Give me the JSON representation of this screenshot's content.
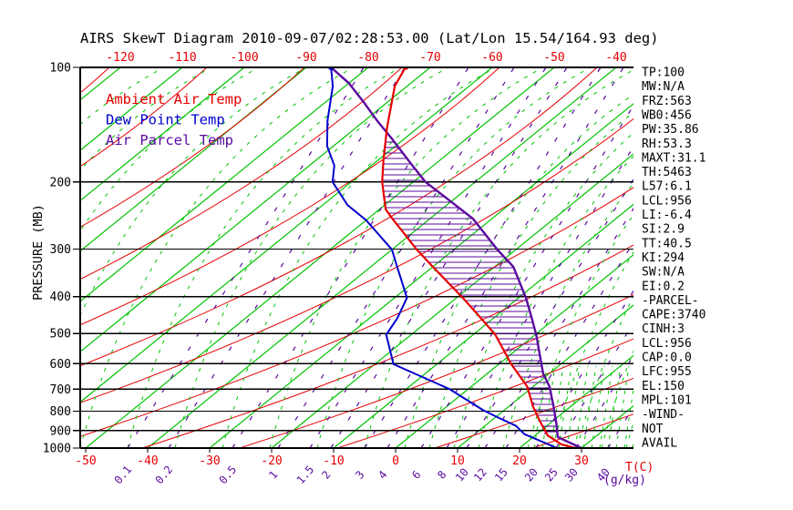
{
  "title": "AIRS SkewT Diagram 2010-09-07/02:28:53.00 (Lat/Lon 15.54/164.93 deg)",
  "legend": {
    "items": [
      {
        "label": "Ambient Air Temp",
        "color": "#e60000"
      },
      {
        "label": "Dew Point Temp",
        "color": "#0000cd"
      },
      {
        "label": "Air Parcel Temp",
        "color": "#5a0a9e"
      }
    ]
  },
  "axes": {
    "pressure_label": "PRESSURE (MB)",
    "pressure_ticks": [
      100,
      200,
      300,
      400,
      500,
      600,
      700,
      800,
      900,
      1000
    ],
    "top_temp_labels": [
      -120,
      -110,
      -100,
      -90,
      -80,
      -70,
      -60,
      -50,
      -40
    ],
    "bottom_temp_labels": [
      -50,
      -40,
      -30,
      -20,
      -10,
      0,
      10,
      20,
      30
    ],
    "temp_unit_label": "T(C)",
    "mixing_ratio_labels": [
      "0.1",
      "0.2",
      "0.5",
      "1",
      "1.5",
      "2",
      "3",
      "4",
      "6",
      "8",
      "10",
      "12",
      "15",
      "20",
      "25",
      "30",
      "40"
    ],
    "mixing_ratio_unit": "(g/kg)"
  },
  "readouts": {
    "lines": [
      "TP:100",
      "MW:N/A",
      "FRZ:563",
      "WB0:456",
      "PW:35.86",
      "RH:53.3",
      "MAXT:31.1",
      "TH:5463",
      "L57:6.1",
      "LCL:956",
      "LI:-6.4",
      "SI:2.9",
      "TT:40.5",
      "KI:294",
      "SW:N/A",
      "EI:0.2",
      "-PARCEL-",
      "CAPE:3740",
      "CINH:3",
      "LCL:956",
      "CAP:0.0",
      "LFC:955",
      "EL:150",
      "MPL:101",
      "-WIND-",
      "NOT",
      "AVAIL"
    ]
  },
  "chart_data": {
    "type": "line",
    "title": "AIRS SkewT Diagram 2010-09-07/02:28:53.00 (Lat/Lon 15.54/164.93 deg)",
    "x_axis": {
      "label": "T(C)",
      "top_tick_labels_c": [
        -120,
        -110,
        -100,
        -90,
        -80,
        -70,
        -60,
        -50,
        -40
      ],
      "bottom_tick_labels_c": [
        -50,
        -40,
        -30,
        -20,
        -10,
        0,
        10,
        20,
        30
      ],
      "skewed": true
    },
    "y_axis": {
      "label": "PRESSURE (MB)",
      "scale": "log",
      "range_mb": [
        100,
        1000
      ],
      "ticks_mb": [
        100,
        200,
        300,
        400,
        500,
        600,
        700,
        800,
        900,
        1000
      ]
    },
    "background": {
      "isotherms_c": {
        "start": -160,
        "end": 50,
        "step": 10,
        "style": "solid green"
      },
      "dry_adiabats": {
        "style": "solid red"
      },
      "moist_adiabats": {
        "style": "dashed green"
      },
      "mixing_ratio_lines_gkg": [
        "0.1",
        "0.2",
        "0.5",
        "1",
        "1.5",
        "2",
        "3",
        "4",
        "6",
        "8",
        "10",
        "12",
        "15",
        "20",
        "25",
        "30",
        "40"
      ]
    },
    "series": [
      {
        "name": "Ambient Air Temp",
        "color": "#e60000",
        "units": [
          "mb",
          "C"
        ],
        "points": [
          [
            100,
            -74
          ],
          [
            112,
            -72
          ],
          [
            144,
            -65
          ],
          [
            176,
            -59
          ],
          [
            200,
            -55
          ],
          [
            236,
            -49
          ],
          [
            250,
            -46
          ],
          [
            301,
            -36
          ],
          [
            334,
            -30
          ],
          [
            403,
            -19
          ],
          [
            456,
            -12
          ],
          [
            504,
            -6.4
          ],
          [
            602,
            2
          ],
          [
            689,
            9
          ],
          [
            779,
            14
          ],
          [
            851,
            18
          ],
          [
            926,
            22
          ],
          [
            978,
            26
          ],
          [
            1000,
            29
          ]
        ]
      },
      {
        "name": "Dew Point Temp",
        "color": "#0000cd",
        "units": [
          "mb",
          "C"
        ],
        "points": [
          [
            100,
            -86
          ],
          [
            112,
            -82
          ],
          [
            138,
            -76
          ],
          [
            161,
            -71
          ],
          [
            181,
            -66
          ],
          [
            200,
            -63
          ],
          [
            230,
            -56
          ],
          [
            252,
            -50
          ],
          [
            301,
            -40
          ],
          [
            332,
            -36
          ],
          [
            403,
            -28
          ],
          [
            456,
            -25.5
          ],
          [
            504,
            -24
          ],
          [
            602,
            -17
          ],
          [
            700,
            -3
          ],
          [
            794,
            6.5
          ],
          [
            827,
            10
          ],
          [
            874,
            15
          ],
          [
            919,
            18
          ],
          [
            989,
            25
          ],
          [
            1000,
            26
          ]
        ]
      },
      {
        "name": "Air Parcel Temp",
        "color": "#5a0a9e",
        "units": [
          "mb",
          "C"
        ],
        "points": [
          [
            100,
            -86
          ],
          [
            110,
            -80
          ],
          [
            123,
            -74
          ],
          [
            138,
            -68
          ],
          [
            154,
            -62
          ],
          [
            179,
            -54
          ],
          [
            200,
            -48
          ],
          [
            232,
            -38
          ],
          [
            250,
            -33
          ],
          [
            301,
            -23
          ],
          [
            334,
            -17
          ],
          [
            403,
            -8.8
          ],
          [
            456,
            -3.8
          ],
          [
            504,
            0.2
          ],
          [
            637,
            9
          ],
          [
            689,
            12.6
          ],
          [
            779,
            17.3
          ],
          [
            851,
            20.6
          ],
          [
            936,
            24
          ],
          [
            1000,
            30
          ]
        ]
      }
    ],
    "annotations": {
      "hatched_region": "CAPE area hatched between Ambient Air Temp and Air Parcel Temp curves from ~150 mb (EL) down to ~990 mb",
      "legend_position": "upper-left inside plot",
      "grid": "horizontal black pressure lines at each labeled level"
    }
  }
}
